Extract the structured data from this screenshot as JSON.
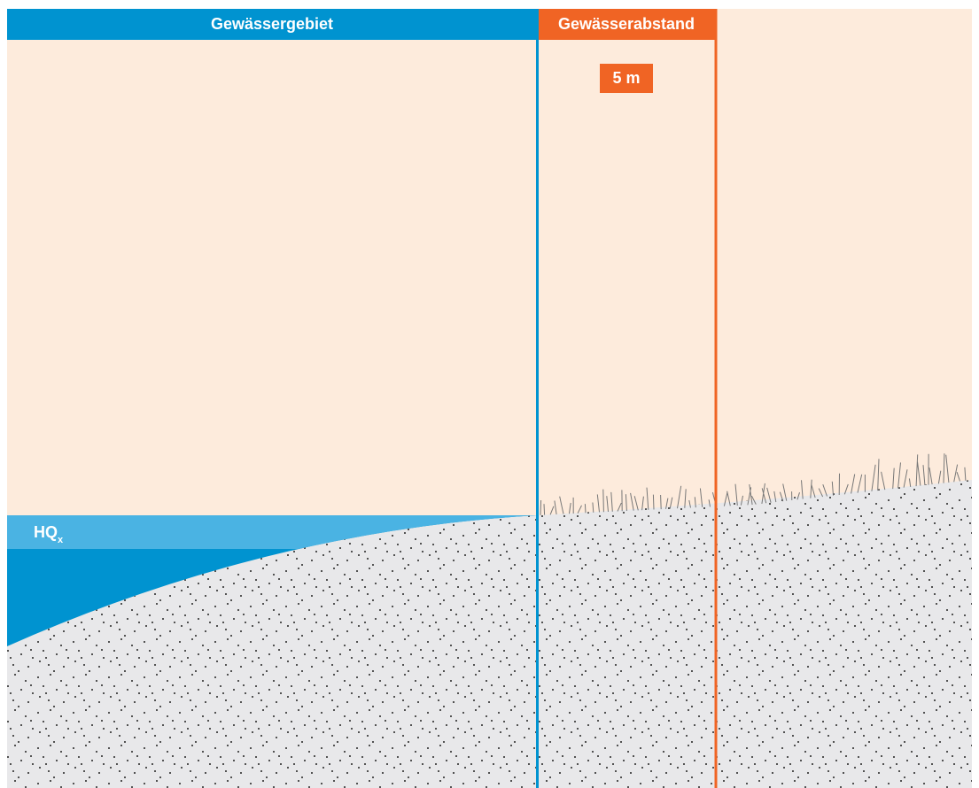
{
  "header": {
    "area": "Gewässergebiet",
    "distance": "Gewässerabstand"
  },
  "distance_label": "5 m",
  "water_level": {
    "label": "HQ",
    "subscript": "x"
  }
}
